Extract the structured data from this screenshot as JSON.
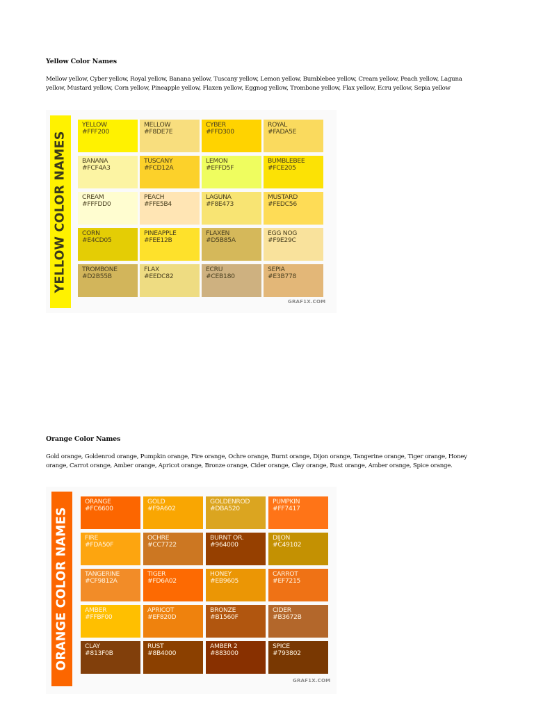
{
  "yellow_section": {
    "heading": "Yellow Color Names",
    "paragraph": "Mellow yellow, Cyber yellow, Royal yellow, Banana yellow, Tuscany yellow, Lemon yellow, Bumblebee yellow, Cream yellow, Peach yellow, Laguna yellow, Mustard yellow, Corn yellow, Pineapple yellow, Flaxen yellow, Eggnog yellow, Trombone yellow, Flax yellow, Ecru yellow, Sepia yellow",
    "chart": {
      "banner_title": "YELLOW COLOR NAMES",
      "banner_color": "#FFF200",
      "banner_text_color": "#3a3a1a",
      "text_color": "#4a4020",
      "credit": "GRAF1X.COM",
      "tiles": [
        {
          "name": "YELLOW",
          "hex": "#FFF200"
        },
        {
          "name": "MELLOW",
          "hex": "#F8DE7E"
        },
        {
          "name": "CYBER",
          "hex": "#FFD300"
        },
        {
          "name": "ROYAL",
          "hex": "#FADA5E"
        },
        {
          "name": "BANANA",
          "hex": "#FCF4A3"
        },
        {
          "name": "TUSCANY",
          "hex": "#FCD12A"
        },
        {
          "name": "LEMON",
          "hex": "#EFFD5F"
        },
        {
          "name": "BUMBLEBEE",
          "hex": "#FCE205"
        },
        {
          "name": "CREAM",
          "hex": "#FFFDD0"
        },
        {
          "name": "PEACH",
          "hex": "#FFE5B4"
        },
        {
          "name": "LAGUNA",
          "hex": "#F8E473"
        },
        {
          "name": "MUSTARD",
          "hex": "#FEDC56"
        },
        {
          "name": "CORN",
          "hex": "#E4CD05"
        },
        {
          "name": "PINEAPPLE",
          "hex": "#FEE12B"
        },
        {
          "name": "FLAXEN",
          "hex": "#D5B85A"
        },
        {
          "name": "EGG NOG",
          "hex": "#F9E29C"
        },
        {
          "name": "TROMBONE",
          "hex": "#D2B55B"
        },
        {
          "name": "FLAX",
          "hex": "#EEDC82"
        },
        {
          "name": "ECRU",
          "hex": "#CEB180"
        },
        {
          "name": "SEPIA",
          "hex": "#E3B778"
        }
      ]
    }
  },
  "orange_section": {
    "heading": "Orange Color Names",
    "paragraph": "Gold orange, Goldenrod orange, Pumpkin orange, Fire orange, Ochre orange, Burnt orange, Dijon orange, Tangerine orange, Tiger orange, Honey orange, Carrot orange, Amber orange, Apricot orange, Bronze orange, Cider orange, Clay orange, Rust orange, Amber orange, Spice orange.",
    "chart": {
      "banner_title": "ORANGE COLOR NAMES",
      "banner_color": "#FC6600",
      "banner_text_color": "#ffffff",
      "text_color": "#fff3e0",
      "credit": "GRAF1X.COM",
      "tiles": [
        {
          "name": "ORANGE",
          "hex": "#FC6600"
        },
        {
          "name": "GOLD",
          "hex": "#F9A602"
        },
        {
          "name": "GOLDENROD",
          "hex": "#DBA520"
        },
        {
          "name": "PUMPKIN",
          "hex": "#FF7417"
        },
        {
          "name": "FIRE",
          "hex": "#FDA50F"
        },
        {
          "name": "OCHRE",
          "hex": "#CC7722"
        },
        {
          "name": "BURNT OR.",
          "hex": "#964000"
        },
        {
          "name": "DIJON",
          "hex": "#C49102"
        },
        {
          "name": "TANGERINE",
          "hex": "#CF9812A"
        },
        {
          "name": "TIGER",
          "hex": "#FD6A02"
        },
        {
          "name": "HONEY",
          "hex": "#EB9605"
        },
        {
          "name": "CARROT",
          "hex": "#EF7215"
        },
        {
          "name": "AMBER",
          "hex": "#FFBF00"
        },
        {
          "name": "APRICOT",
          "hex": "#EF820D"
        },
        {
          "name": "BRONZE",
          "hex": "#B1560F"
        },
        {
          "name": "CIDER",
          "hex": "#B3672B"
        },
        {
          "name": "CLAY",
          "hex": "#813F0B"
        },
        {
          "name": "RUST",
          "hex": "#8B4000"
        },
        {
          "name": "AMBER 2",
          "hex": "#883000"
        },
        {
          "name": "SPICE",
          "hex": "#793802"
        }
      ]
    }
  }
}
